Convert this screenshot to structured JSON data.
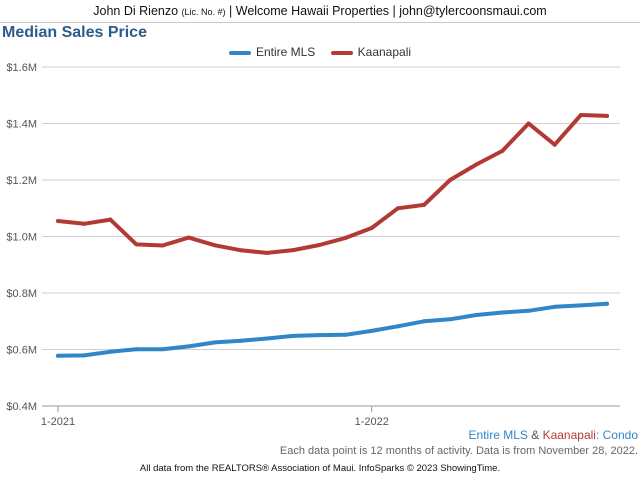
{
  "header": {
    "agent_name": "John Di Rienzo",
    "license": "(Lic. No. #)",
    "rest": "| Welcome Hawaii Properties | john@tylercoonsmaui.com"
  },
  "chart_data": {
    "type": "line",
    "title": "Median Sales Price",
    "y_ticks": [
      "$0.4M",
      "$0.6M",
      "$0.8M",
      "$1.0M",
      "$1.2M",
      "$1.4M",
      "$1.6M"
    ],
    "y_tick_values": [
      0.4,
      0.6,
      0.8,
      1.0,
      1.2,
      1.4,
      1.6
    ],
    "ylim": [
      0.4,
      1.6
    ],
    "x_ticks": [
      "1-2021",
      "1-2022"
    ],
    "x_tick_indices": [
      0,
      12
    ],
    "x": [
      "1-2021",
      "2-2021",
      "3-2021",
      "4-2021",
      "5-2021",
      "6-2021",
      "7-2021",
      "8-2021",
      "9-2021",
      "10-2021",
      "11-2021",
      "12-2021",
      "1-2022",
      "2-2022",
      "3-2022",
      "4-2022",
      "5-2022",
      "6-2022",
      "7-2022",
      "8-2022",
      "9-2022",
      "10-2022"
    ],
    "grid": true,
    "legend_position": "top-center",
    "series": [
      {
        "name": "Entire MLS",
        "color": "#2f87c8",
        "values": [
          0.578,
          0.579,
          0.592,
          0.601,
          0.601,
          0.611,
          0.625,
          0.631,
          0.639,
          0.648,
          0.651,
          0.652,
          0.666,
          0.682,
          0.7,
          0.707,
          0.722,
          0.731,
          0.737,
          0.751,
          0.756,
          0.762
        ]
      },
      {
        "name": "Kaanapali",
        "color": "#b33a34",
        "values": [
          1.055,
          1.045,
          1.06,
          0.972,
          0.968,
          0.996,
          0.969,
          0.951,
          0.942,
          0.952,
          0.97,
          0.995,
          1.03,
          1.1,
          1.112,
          1.2,
          1.255,
          1.303,
          1.4,
          1.325,
          1.43,
          1.427
        ]
      }
    ]
  },
  "subtitle": {
    "part1": "Entire MLS",
    "amp": "&",
    "part2": "Kaanapali",
    "part3": ": Condo"
  },
  "note": "Each data point is 12 months of activity. Data is from November 28, 2022.",
  "footer": "All data from the REALTORS® Association of Maui. InfoSparks © 2023 ShowingTime.",
  "colors": {
    "mls": "#2f87c8",
    "kaanapali": "#b33a34",
    "title": "#2d5b8c"
  }
}
